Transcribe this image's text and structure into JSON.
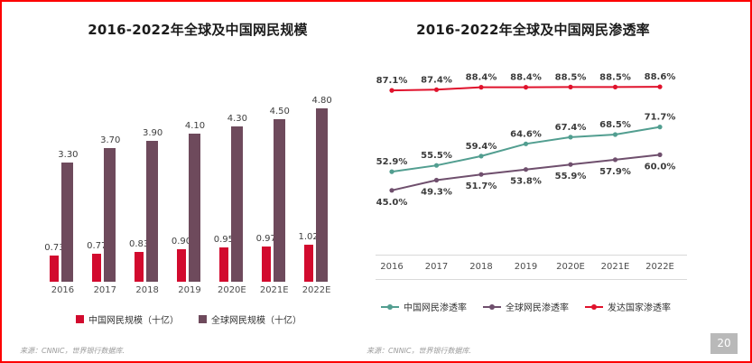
{
  "slide": {
    "left_source": "来源：CNNIC，世界银行数据库.",
    "right_source": "来源：CNNIC，世界银行数据库.",
    "page_number": "20",
    "border_color": "#fd0000",
    "page_box_color": "#b9b9b9"
  },
  "chart_data": [
    {
      "type": "bar",
      "title": "2016-2022年全球及中国网民规模",
      "categories": [
        "2016",
        "2017",
        "2018",
        "2019",
        "2020E",
        "2021E",
        "2022E"
      ],
      "series": [
        {
          "name": "中国网民规模（十亿）",
          "color": "#d20a2e",
          "values": [
            0.73,
            0.77,
            0.83,
            0.9,
            0.95,
            0.97,
            1.02
          ]
        },
        {
          "name": "全球网民规模（十亿）",
          "color": "#6e4a5c",
          "values": [
            3.3,
            3.7,
            3.9,
            4.1,
            4.3,
            4.5,
            4.8
          ]
        }
      ],
      "value_label_decimals": 2,
      "ylim": [
        0,
        5.0
      ],
      "grid": false,
      "legend_position": "bottom"
    },
    {
      "type": "line",
      "title": "2016-2022年全球及中国网民渗透率",
      "categories": [
        "2016",
        "2017",
        "2018",
        "2019",
        "2020E",
        "2021E",
        "2022E"
      ],
      "series": [
        {
          "name": "中国网民渗透率",
          "color": "#529e90",
          "values": [
            52.9,
            55.5,
            59.4,
            64.6,
            67.4,
            68.5,
            71.7
          ],
          "label_position": "above"
        },
        {
          "name": "全球网民渗透率",
          "color": "#6f4f6d",
          "values": [
            45.0,
            49.3,
            51.7,
            53.8,
            55.9,
            57.9,
            60.0
          ],
          "label_position": "below"
        },
        {
          "name": "发达国家渗透率",
          "color": "#e0122c",
          "values": [
            87.1,
            87.4,
            88.4,
            88.4,
            88.5,
            88.5,
            88.6
          ],
          "label_position": "above"
        }
      ],
      "value_label_decimals": 1,
      "value_label_suffix": "%",
      "ylim": [
        40,
        97
      ],
      "grid": false,
      "legend_position": "bottom"
    }
  ]
}
